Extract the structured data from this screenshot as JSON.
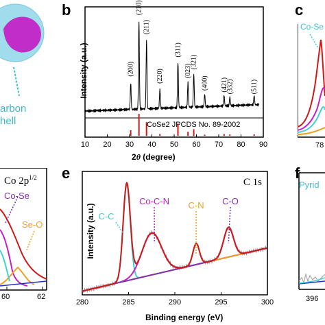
{
  "panels": {
    "b": "b",
    "c": "c",
    "e": "e",
    "f": "f",
    "a_label_1": "arbon",
    "a_label_2": "hell",
    "c_partial": "Co-Se",
    "c_tick_partial": "78",
    "d_title": "Co 2p",
    "d_title_sup": "1/2",
    "d_co_se": "Co-Se",
    "d_se_o": "Se-O",
    "d_ticks": [
      "60",
      "62"
    ],
    "f_partial": "Pyrid",
    "f_tick_partial": "396"
  },
  "chart_data": [
    {
      "type": "line",
      "panel": "b",
      "xlabel": "2θ (degree)",
      "xlabel_parts": [
        "2",
        "θ",
        " (degree)"
      ],
      "ylabel": "Intensity (a.u.)",
      "xlim": [
        10,
        90
      ],
      "xticks": [
        "10",
        "20",
        "30",
        "40",
        "50",
        "60",
        "70",
        "80",
        "90"
      ],
      "peaks": [
        {
          "x": 30.5,
          "label": "(200)",
          "h": 0.3
        },
        {
          "x": 34.2,
          "label": "(210)",
          "h": 1.0
        },
        {
          "x": 37.6,
          "label": "(211)",
          "h": 0.78
        },
        {
          "x": 43.6,
          "label": "(220)",
          "h": 0.22
        },
        {
          "x": 51.7,
          "label": "(311)",
          "h": 0.52
        },
        {
          "x": 56.2,
          "label": "(023)",
          "h": 0.28
        },
        {
          "x": 58.8,
          "label": "(321)",
          "h": 0.38
        },
        {
          "x": 63.7,
          "label": "(400)",
          "h": 0.14
        },
        {
          "x": 72.4,
          "label": "(421)",
          "h": 0.12
        },
        {
          "x": 75.0,
          "label": "(332)",
          "h": 0.1
        },
        {
          "x": 85.9,
          "label": "(511)",
          "h": 0.1
        }
      ],
      "reference_label": "CoSe2 JPCDS No. 89-2002",
      "reference_lines": [
        {
          "x": 30.5,
          "h": 0.25
        },
        {
          "x": 34.2,
          "h": 1.0
        },
        {
          "x": 37.6,
          "h": 0.62
        },
        {
          "x": 43.6,
          "h": 0.08
        },
        {
          "x": 51.7,
          "h": 0.55
        },
        {
          "x": 56.2,
          "h": 0.18
        },
        {
          "x": 58.8,
          "h": 0.3
        },
        {
          "x": 63.7,
          "h": 0.05
        },
        {
          "x": 72.4,
          "h": 0.08
        },
        {
          "x": 75.0,
          "h": 0.06
        },
        {
          "x": 85.9,
          "h": 0.07
        }
      ]
    },
    {
      "type": "line",
      "panel": "e",
      "title": "C 1s",
      "xlabel": "Binding energy (eV)",
      "ylabel": "Intensity (a.u.)",
      "xlim": [
        280,
        300
      ],
      "xticks": [
        "280",
        "285",
        "290",
        "295",
        "300"
      ],
      "components": [
        {
          "name": "C-C",
          "center": 284.8,
          "height": 0.78,
          "width": 0.55,
          "color": "#3fd0d8"
        },
        {
          "name": "Co-C-N",
          "center": 287.5,
          "height": 0.34,
          "width": 1.5,
          "color": "#c020c8"
        },
        {
          "name": "C-N",
          "center": 292.3,
          "height": 0.17,
          "width": 0.5,
          "color": "#f0a020"
        },
        {
          "name": "C-O",
          "center": 295.8,
          "height": 0.24,
          "width": 0.75,
          "color": "#8030b0"
        }
      ],
      "background": {
        "start": 0.03,
        "end": 0.38
      },
      "colors": {
        "envelope": "#d01818",
        "raw": "#9a9a9a",
        "background": "#2030c0"
      }
    }
  ]
}
